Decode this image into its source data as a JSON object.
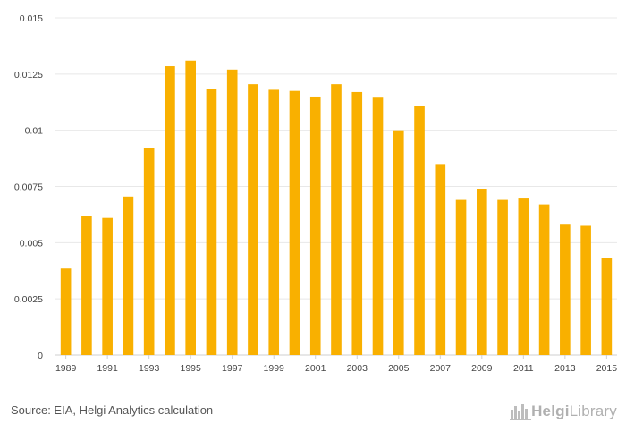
{
  "chart_data": {
    "type": "bar",
    "title": "",
    "xlabel": "",
    "ylabel": "",
    "ylim": [
      0,
      0.015
    ],
    "yticks": [
      "0",
      "0.0025",
      "0.005",
      "0.0075",
      "0.01",
      "0.0125",
      "0.015"
    ],
    "ytick_values": [
      0,
      0.0025,
      0.005,
      0.0075,
      0.01,
      0.0125,
      0.015
    ],
    "categories": [
      "1989",
      "1990",
      "1991",
      "1992",
      "1993",
      "1994",
      "1995",
      "1996",
      "1997",
      "1998",
      "1999",
      "2000",
      "2001",
      "2002",
      "2003",
      "2004",
      "2005",
      "2006",
      "2007",
      "2008",
      "2009",
      "2010",
      "2011",
      "2012",
      "2013",
      "2014",
      "2015"
    ],
    "xtick_labels": [
      "1989",
      "1991",
      "1993",
      "1995",
      "1997",
      "1999",
      "2001",
      "2003",
      "2005",
      "2007",
      "2009",
      "2011",
      "2013",
      "2015"
    ],
    "values": [
      0.00385,
      0.0062,
      0.0061,
      0.00705,
      0.0092,
      0.01285,
      0.0131,
      0.01185,
      0.0127,
      0.01205,
      0.0118,
      0.01175,
      0.0115,
      0.01205,
      0.0117,
      0.01145,
      0.01,
      0.0111,
      0.0085,
      0.0069,
      0.0074,
      0.0069,
      0.007,
      0.0067,
      0.0058,
      0.00575,
      0.0043
    ],
    "bar_color": "#f9b000",
    "grid": true
  },
  "footer": {
    "source": "Source: EIA, Helgi Analytics calculation",
    "logo_text_bold": "Helgi",
    "logo_text_light": "Library"
  }
}
